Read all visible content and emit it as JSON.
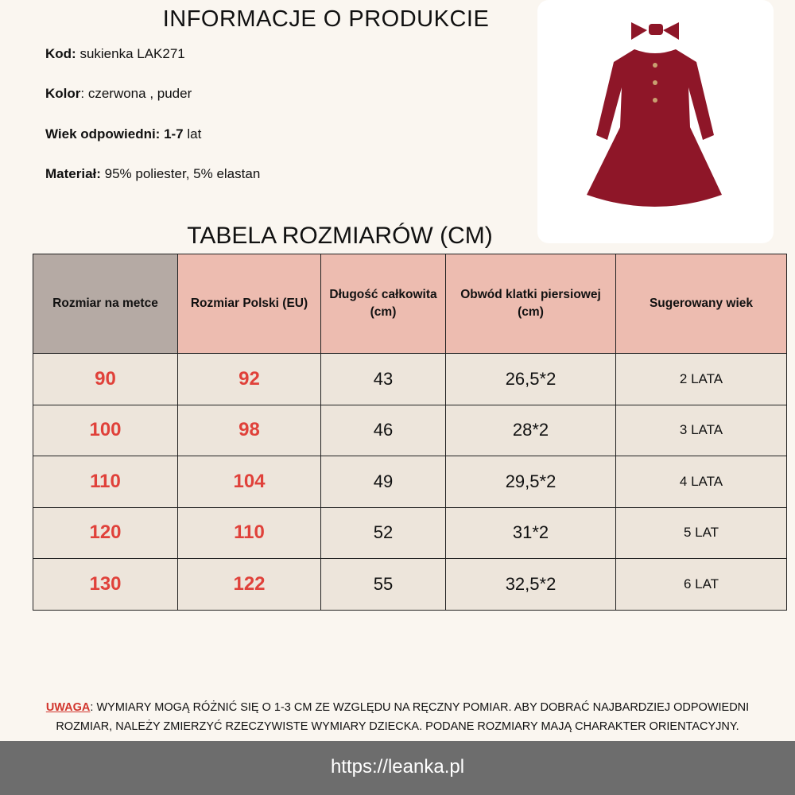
{
  "info": {
    "title": "INFORMACJE O PRODUKCIE",
    "fields": [
      {
        "label": "Kod:",
        "value": " sukienka LAK271"
      },
      {
        "label": "Kolor",
        "value": ":  czerwona , puder"
      },
      {
        "label": "Wiek odpowiedni: 1-7",
        "value": " lat"
      },
      {
        "label": "Materiał:",
        "value": " 95% poliester, 5% elastan"
      }
    ]
  },
  "colors": {
    "accent_red": "#e0413a",
    "header_pink": "#edbcb0",
    "header_gray": "#b5aaa4",
    "row_bg": "#ede5db",
    "footer_bg": "#6d6d6d"
  },
  "table": {
    "title": "TABELA ROZMIARÓW (CM)",
    "headers": [
      "Rozmiar na metce",
      "Rozmiar Polski (EU)",
      "Długość całkowita (cm)",
      "Obwód klatki piersiowej (cm)",
      "Sugerowany wiek"
    ],
    "rows": [
      [
        "90",
        "92",
        "43",
        "26,5*2",
        "2 LATA"
      ],
      [
        "100",
        "98",
        "46",
        "28*2",
        "3 LATA"
      ],
      [
        "110",
        "104",
        "49",
        "29,5*2",
        "4 LATA"
      ],
      [
        "120",
        "110",
        "52",
        "31*2",
        "5 LAT"
      ],
      [
        "130",
        "122",
        "55",
        "32,5*2",
        "6 LAT"
      ]
    ]
  },
  "note": {
    "label": "UWAGA",
    "line1": ": WYMIARY MOGĄ RÓŻNIĆ SIĘ O 1-3 CM ZE WZGLĘDU NA RĘCZNY POMIAR. ABY DOBRAĆ NAJBARDZIEJ ODPOWIEDNI",
    "line2": "ROZMIAR, NALEŻY ZMIERZYĆ RZECZYWISTE WYMIARY DZIECKA. PODANE ROZMIARY MAJĄ CHARAKTER ORIENTACYJNY."
  },
  "footer": {
    "url": "https://leanka.pl"
  }
}
